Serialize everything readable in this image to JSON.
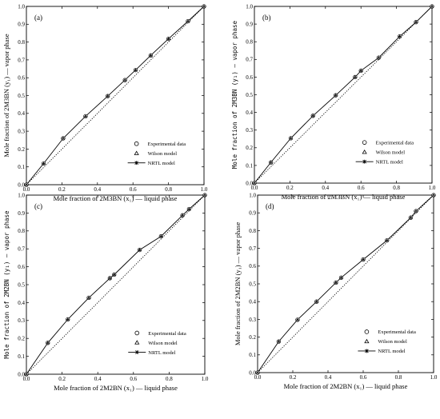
{
  "chart_data": [
    {
      "type": "line",
      "panel_label": "(a)",
      "xlabel": "Mole fraction of 2M3BN (x₁) — liquid phase",
      "ylabel": "Mole fraction of 2M3BN (y₁) — vapor phase",
      "ylabel_mono": false,
      "xlim": [
        0,
        1.0
      ],
      "ylim": [
        0,
        1.0
      ],
      "x_ticks": [
        "0.0",
        "0.2",
        "0.4",
        "0.6",
        "0.8",
        "1.0"
      ],
      "y_ticks": [
        "0.0",
        "0.1",
        "0.2",
        "0.3",
        "0.4",
        "0.5",
        "0.6",
        "0.7",
        "0.8",
        "0.9",
        "1.0"
      ],
      "legend": [
        "Experimental data",
        "Wilson model",
        "NRTL model"
      ],
      "x": [
        0.0,
        0.097,
        0.207,
        0.333,
        0.458,
        0.555,
        0.615,
        0.7,
        0.8,
        0.91,
        1.0
      ],
      "y": [
        0.0,
        0.119,
        0.26,
        0.384,
        0.497,
        0.587,
        0.643,
        0.725,
        0.818,
        0.917,
        1.0
      ]
    },
    {
      "type": "line",
      "panel_label": "(b)",
      "xlabel": "Mole fraction of 2M3BN (x₁) — liquid phase",
      "ylabel": "Mole fraction of 2M3BN (y₁) — vapor phase",
      "ylabel_mono": true,
      "xlim": [
        0,
        1.0
      ],
      "ylim": [
        0,
        1.0
      ],
      "x_ticks": [
        "0.0",
        "0.2",
        "0.4",
        "0.6",
        "0.8",
        "1.0"
      ],
      "y_ticks": [
        "0.0",
        "0.1",
        "0.2",
        "0.3",
        "0.4",
        "0.5",
        "0.6",
        "0.7",
        "0.8",
        "0.9",
        "1.0"
      ],
      "legend": [
        "Experimental data",
        "Wilson model",
        "NRTL model"
      ],
      "x": [
        0.0,
        0.093,
        0.205,
        0.33,
        0.458,
        0.567,
        0.6,
        0.7,
        0.818,
        0.91,
        1.0
      ],
      "y": [
        0.0,
        0.117,
        0.254,
        0.381,
        0.497,
        0.6,
        0.636,
        0.71,
        0.83,
        0.911,
        1.0
      ]
    },
    {
      "type": "line",
      "panel_label": "(c)",
      "xlabel": "Mole fraction of 2M2BN (x₁) — liquid phase",
      "ylabel": "Mole fraction of 2M2BN (y₁) — vapor phase",
      "ylabel_mono": true,
      "xlim": [
        0,
        1.0
      ],
      "ylim": [
        0,
        1.0
      ],
      "x_ticks": [
        "0.0",
        "0.2",
        "0.4",
        "0.6",
        "0.8",
        "1.0"
      ],
      "y_ticks": [
        "0.0",
        "0.1",
        "0.2",
        "0.3",
        "0.4",
        "0.5",
        "0.6",
        "0.7",
        "0.8",
        "0.9",
        "1.0"
      ],
      "legend": [
        "Experimental data",
        "Wilson model",
        "NRTL model"
      ],
      "x": [
        0.0,
        0.12,
        0.232,
        0.35,
        0.468,
        0.492,
        0.635,
        0.755,
        0.875,
        0.912,
        1.0
      ],
      "y": [
        0.0,
        0.175,
        0.306,
        0.427,
        0.536,
        0.556,
        0.694,
        0.77,
        0.887,
        0.922,
        1.0
      ]
    },
    {
      "type": "line",
      "panel_label": "(d)",
      "xlabel": "Mole fraction of 2M2BN (x₁) — liquid phase",
      "ylabel": "Mole fraction of 2M2BN (y₁) — vapor phase",
      "ylabel_mono": false,
      "xlim": [
        0,
        1.0
      ],
      "ylim": [
        0,
        1.0
      ],
      "x_ticks": [
        "0.0",
        "0.2",
        "0.4",
        "0.6",
        "0.8",
        "1.0"
      ],
      "y_ticks": [
        "0.0",
        "0.1",
        "0.2",
        "0.3",
        "0.4",
        "0.5",
        "0.6",
        "0.7",
        "0.8",
        "0.9",
        "1.0"
      ],
      "legend": [
        "Experimental data",
        "Wilson model",
        "NRTL model"
      ],
      "x": [
        0.0,
        0.12,
        0.227,
        0.335,
        0.445,
        0.475,
        0.6,
        0.735,
        0.87,
        0.9,
        1.0
      ],
      "y": [
        0.0,
        0.175,
        0.298,
        0.4,
        0.507,
        0.535,
        0.637,
        0.745,
        0.873,
        0.91,
        1.0
      ]
    }
  ]
}
